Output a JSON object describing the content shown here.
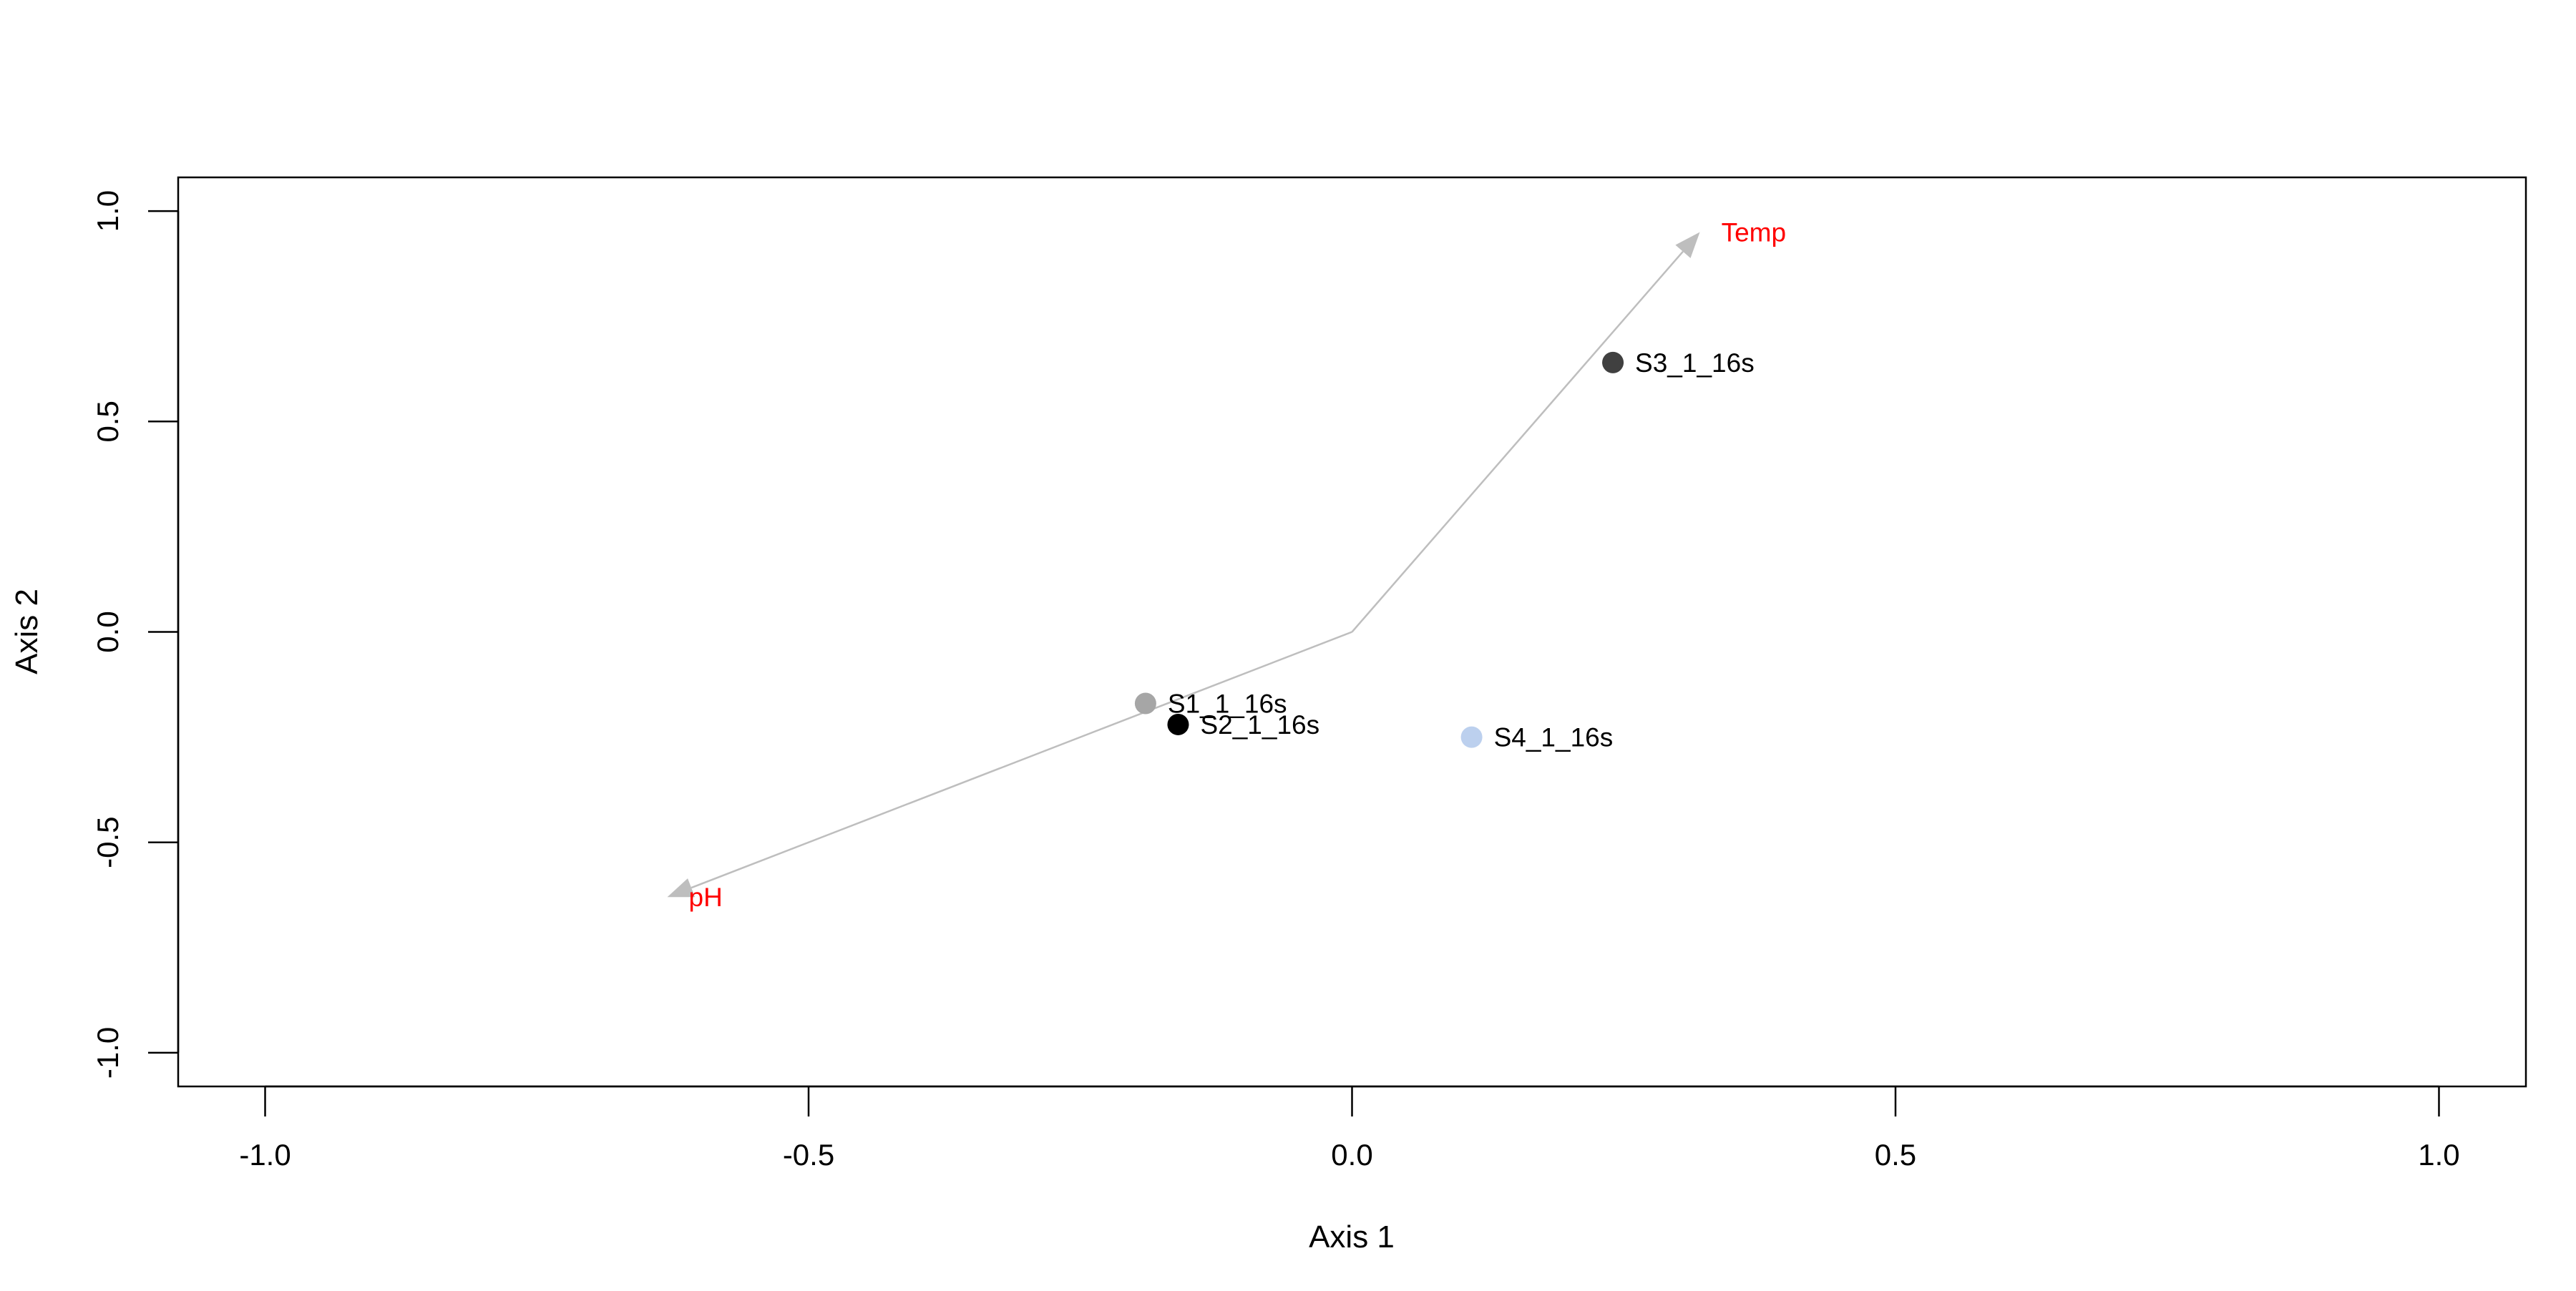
{
  "chart_data": {
    "type": "scatter",
    "title": "",
    "xlabel": "Axis 1",
    "ylabel": "Axis 2",
    "xlim": [
      -1.08,
      1.08
    ],
    "ylim": [
      -1.08,
      1.08
    ],
    "x_ticks": [
      {
        "value": -1.0,
        "label": "-1.0"
      },
      {
        "value": -0.5,
        "label": "-0.5"
      },
      {
        "value": 0.0,
        "label": "0.0"
      },
      {
        "value": 0.5,
        "label": "0.5"
      },
      {
        "value": 1.0,
        "label": "1.0"
      }
    ],
    "y_ticks": [
      {
        "value": -1.0,
        "label": "-1.0"
      },
      {
        "value": -0.5,
        "label": "-0.5"
      },
      {
        "value": 0.0,
        "label": "0.0"
      },
      {
        "value": 0.5,
        "label": "0.5"
      },
      {
        "value": 1.0,
        "label": "1.0"
      }
    ],
    "grid": false,
    "legend": "none",
    "points": [
      {
        "label": "S1_1_16s",
        "x": -0.19,
        "y": -0.17,
        "color": "#A6A6A6"
      },
      {
        "label": "S2_1_16s",
        "x": -0.16,
        "y": -0.22,
        "color": "#000000"
      },
      {
        "label": "S3_1_16s",
        "x": 0.24,
        "y": 0.64,
        "color": "#404040"
      },
      {
        "label": "S4_1_16s",
        "x": 0.11,
        "y": -0.25,
        "color": "#BCD0EE"
      }
    ],
    "vectors": [
      {
        "label": "pH",
        "x": -0.63,
        "y": -0.63,
        "color": "#BEBEBE",
        "label_color": "#FF0000"
      },
      {
        "label": "Temp",
        "x": 0.32,
        "y": 0.95,
        "color": "#BEBEBE",
        "label_color": "#FF0000"
      }
    ]
  }
}
